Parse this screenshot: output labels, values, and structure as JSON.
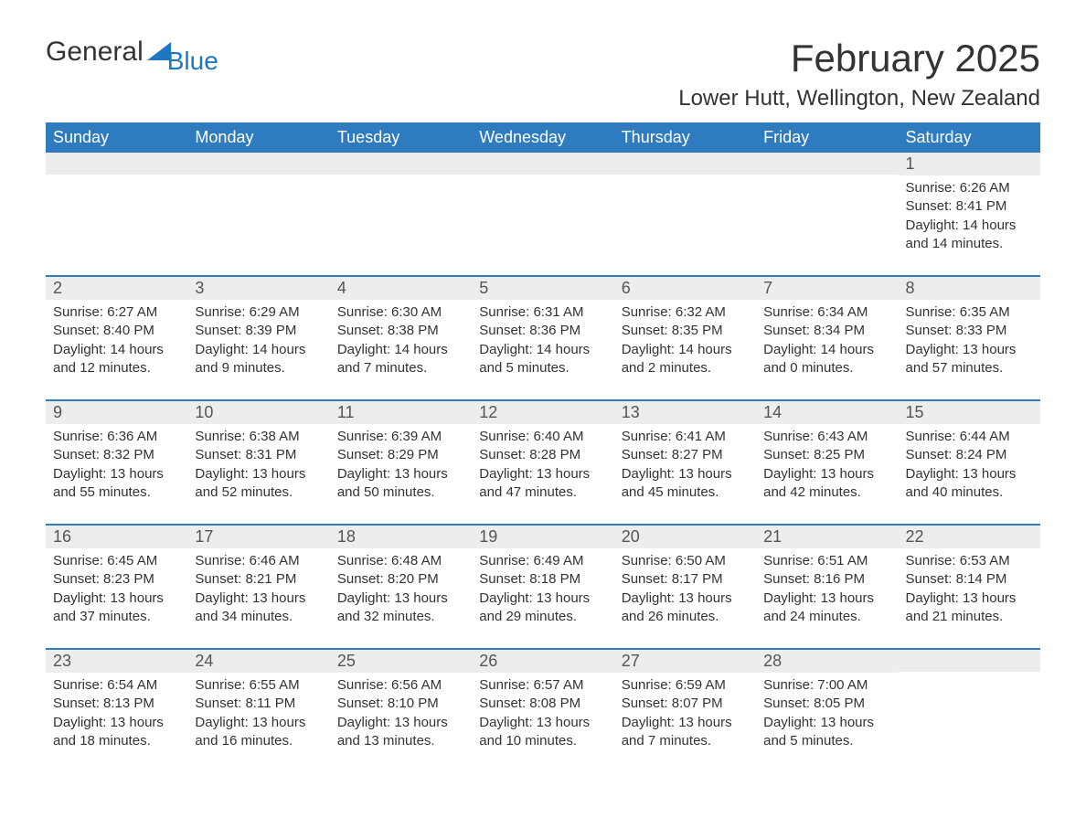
{
  "logo": {
    "text_general": "General",
    "text_blue": "Blue"
  },
  "title": "February 2025",
  "location": "Lower Hutt, Wellington, New Zealand",
  "colors": {
    "header_bg": "#2f7bbf",
    "header_text": "#ffffff",
    "row_separator": "#2f7bbf",
    "daynum_bg": "#ededed",
    "body_text": "#333333",
    "logo_blue": "#1f77c3"
  },
  "weekdays": [
    "Sunday",
    "Monday",
    "Tuesday",
    "Wednesday",
    "Thursday",
    "Friday",
    "Saturday"
  ],
  "weeks": [
    [
      {
        "day": "",
        "sunrise": "",
        "sunset": "",
        "daylight": ""
      },
      {
        "day": "",
        "sunrise": "",
        "sunset": "",
        "daylight": ""
      },
      {
        "day": "",
        "sunrise": "",
        "sunset": "",
        "daylight": ""
      },
      {
        "day": "",
        "sunrise": "",
        "sunset": "",
        "daylight": ""
      },
      {
        "day": "",
        "sunrise": "",
        "sunset": "",
        "daylight": ""
      },
      {
        "day": "",
        "sunrise": "",
        "sunset": "",
        "daylight": ""
      },
      {
        "day": "1",
        "sunrise": "Sunrise: 6:26 AM",
        "sunset": "Sunset: 8:41 PM",
        "daylight": "Daylight: 14 hours and 14 minutes."
      }
    ],
    [
      {
        "day": "2",
        "sunrise": "Sunrise: 6:27 AM",
        "sunset": "Sunset: 8:40 PM",
        "daylight": "Daylight: 14 hours and 12 minutes."
      },
      {
        "day": "3",
        "sunrise": "Sunrise: 6:29 AM",
        "sunset": "Sunset: 8:39 PM",
        "daylight": "Daylight: 14 hours and 9 minutes."
      },
      {
        "day": "4",
        "sunrise": "Sunrise: 6:30 AM",
        "sunset": "Sunset: 8:38 PM",
        "daylight": "Daylight: 14 hours and 7 minutes."
      },
      {
        "day": "5",
        "sunrise": "Sunrise: 6:31 AM",
        "sunset": "Sunset: 8:36 PM",
        "daylight": "Daylight: 14 hours and 5 minutes."
      },
      {
        "day": "6",
        "sunrise": "Sunrise: 6:32 AM",
        "sunset": "Sunset: 8:35 PM",
        "daylight": "Daylight: 14 hours and 2 minutes."
      },
      {
        "day": "7",
        "sunrise": "Sunrise: 6:34 AM",
        "sunset": "Sunset: 8:34 PM",
        "daylight": "Daylight: 14 hours and 0 minutes."
      },
      {
        "day": "8",
        "sunrise": "Sunrise: 6:35 AM",
        "sunset": "Sunset: 8:33 PM",
        "daylight": "Daylight: 13 hours and 57 minutes."
      }
    ],
    [
      {
        "day": "9",
        "sunrise": "Sunrise: 6:36 AM",
        "sunset": "Sunset: 8:32 PM",
        "daylight": "Daylight: 13 hours and 55 minutes."
      },
      {
        "day": "10",
        "sunrise": "Sunrise: 6:38 AM",
        "sunset": "Sunset: 8:31 PM",
        "daylight": "Daylight: 13 hours and 52 minutes."
      },
      {
        "day": "11",
        "sunrise": "Sunrise: 6:39 AM",
        "sunset": "Sunset: 8:29 PM",
        "daylight": "Daylight: 13 hours and 50 minutes."
      },
      {
        "day": "12",
        "sunrise": "Sunrise: 6:40 AM",
        "sunset": "Sunset: 8:28 PM",
        "daylight": "Daylight: 13 hours and 47 minutes."
      },
      {
        "day": "13",
        "sunrise": "Sunrise: 6:41 AM",
        "sunset": "Sunset: 8:27 PM",
        "daylight": "Daylight: 13 hours and 45 minutes."
      },
      {
        "day": "14",
        "sunrise": "Sunrise: 6:43 AM",
        "sunset": "Sunset: 8:25 PM",
        "daylight": "Daylight: 13 hours and 42 minutes."
      },
      {
        "day": "15",
        "sunrise": "Sunrise: 6:44 AM",
        "sunset": "Sunset: 8:24 PM",
        "daylight": "Daylight: 13 hours and 40 minutes."
      }
    ],
    [
      {
        "day": "16",
        "sunrise": "Sunrise: 6:45 AM",
        "sunset": "Sunset: 8:23 PM",
        "daylight": "Daylight: 13 hours and 37 minutes."
      },
      {
        "day": "17",
        "sunrise": "Sunrise: 6:46 AM",
        "sunset": "Sunset: 8:21 PM",
        "daylight": "Daylight: 13 hours and 34 minutes."
      },
      {
        "day": "18",
        "sunrise": "Sunrise: 6:48 AM",
        "sunset": "Sunset: 8:20 PM",
        "daylight": "Daylight: 13 hours and 32 minutes."
      },
      {
        "day": "19",
        "sunrise": "Sunrise: 6:49 AM",
        "sunset": "Sunset: 8:18 PM",
        "daylight": "Daylight: 13 hours and 29 minutes."
      },
      {
        "day": "20",
        "sunrise": "Sunrise: 6:50 AM",
        "sunset": "Sunset: 8:17 PM",
        "daylight": "Daylight: 13 hours and 26 minutes."
      },
      {
        "day": "21",
        "sunrise": "Sunrise: 6:51 AM",
        "sunset": "Sunset: 8:16 PM",
        "daylight": "Daylight: 13 hours and 24 minutes."
      },
      {
        "day": "22",
        "sunrise": "Sunrise: 6:53 AM",
        "sunset": "Sunset: 8:14 PM",
        "daylight": "Daylight: 13 hours and 21 minutes."
      }
    ],
    [
      {
        "day": "23",
        "sunrise": "Sunrise: 6:54 AM",
        "sunset": "Sunset: 8:13 PM",
        "daylight": "Daylight: 13 hours and 18 minutes."
      },
      {
        "day": "24",
        "sunrise": "Sunrise: 6:55 AM",
        "sunset": "Sunset: 8:11 PM",
        "daylight": "Daylight: 13 hours and 16 minutes."
      },
      {
        "day": "25",
        "sunrise": "Sunrise: 6:56 AM",
        "sunset": "Sunset: 8:10 PM",
        "daylight": "Daylight: 13 hours and 13 minutes."
      },
      {
        "day": "26",
        "sunrise": "Sunrise: 6:57 AM",
        "sunset": "Sunset: 8:08 PM",
        "daylight": "Daylight: 13 hours and 10 minutes."
      },
      {
        "day": "27",
        "sunrise": "Sunrise: 6:59 AM",
        "sunset": "Sunset: 8:07 PM",
        "daylight": "Daylight: 13 hours and 7 minutes."
      },
      {
        "day": "28",
        "sunrise": "Sunrise: 7:00 AM",
        "sunset": "Sunset: 8:05 PM",
        "daylight": "Daylight: 13 hours and 5 minutes."
      },
      {
        "day": "",
        "sunrise": "",
        "sunset": "",
        "daylight": ""
      }
    ]
  ]
}
